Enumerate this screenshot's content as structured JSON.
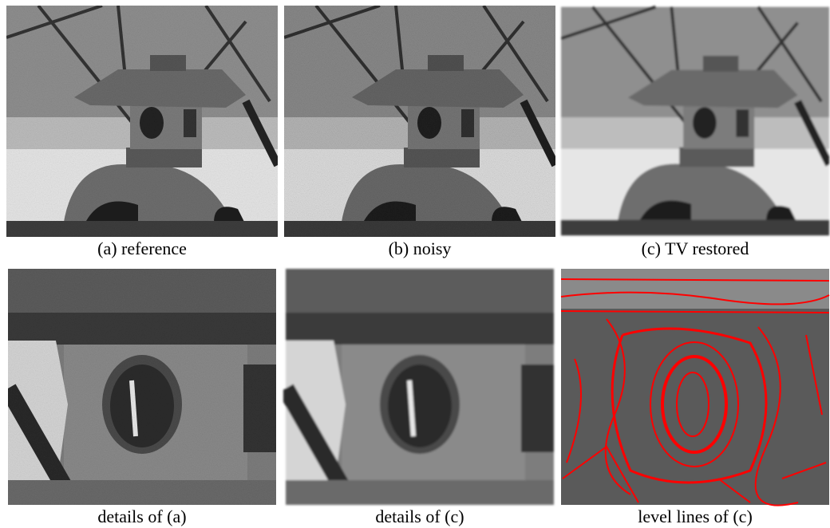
{
  "figure": {
    "panels": [
      {
        "caption": "(a) reference"
      },
      {
        "caption": "(b) noisy"
      },
      {
        "caption": "(c) TV restored"
      },
      {
        "caption": "details of (a)"
      },
      {
        "caption": "details of (c)"
      },
      {
        "caption": "level lines of (c)"
      }
    ]
  }
}
